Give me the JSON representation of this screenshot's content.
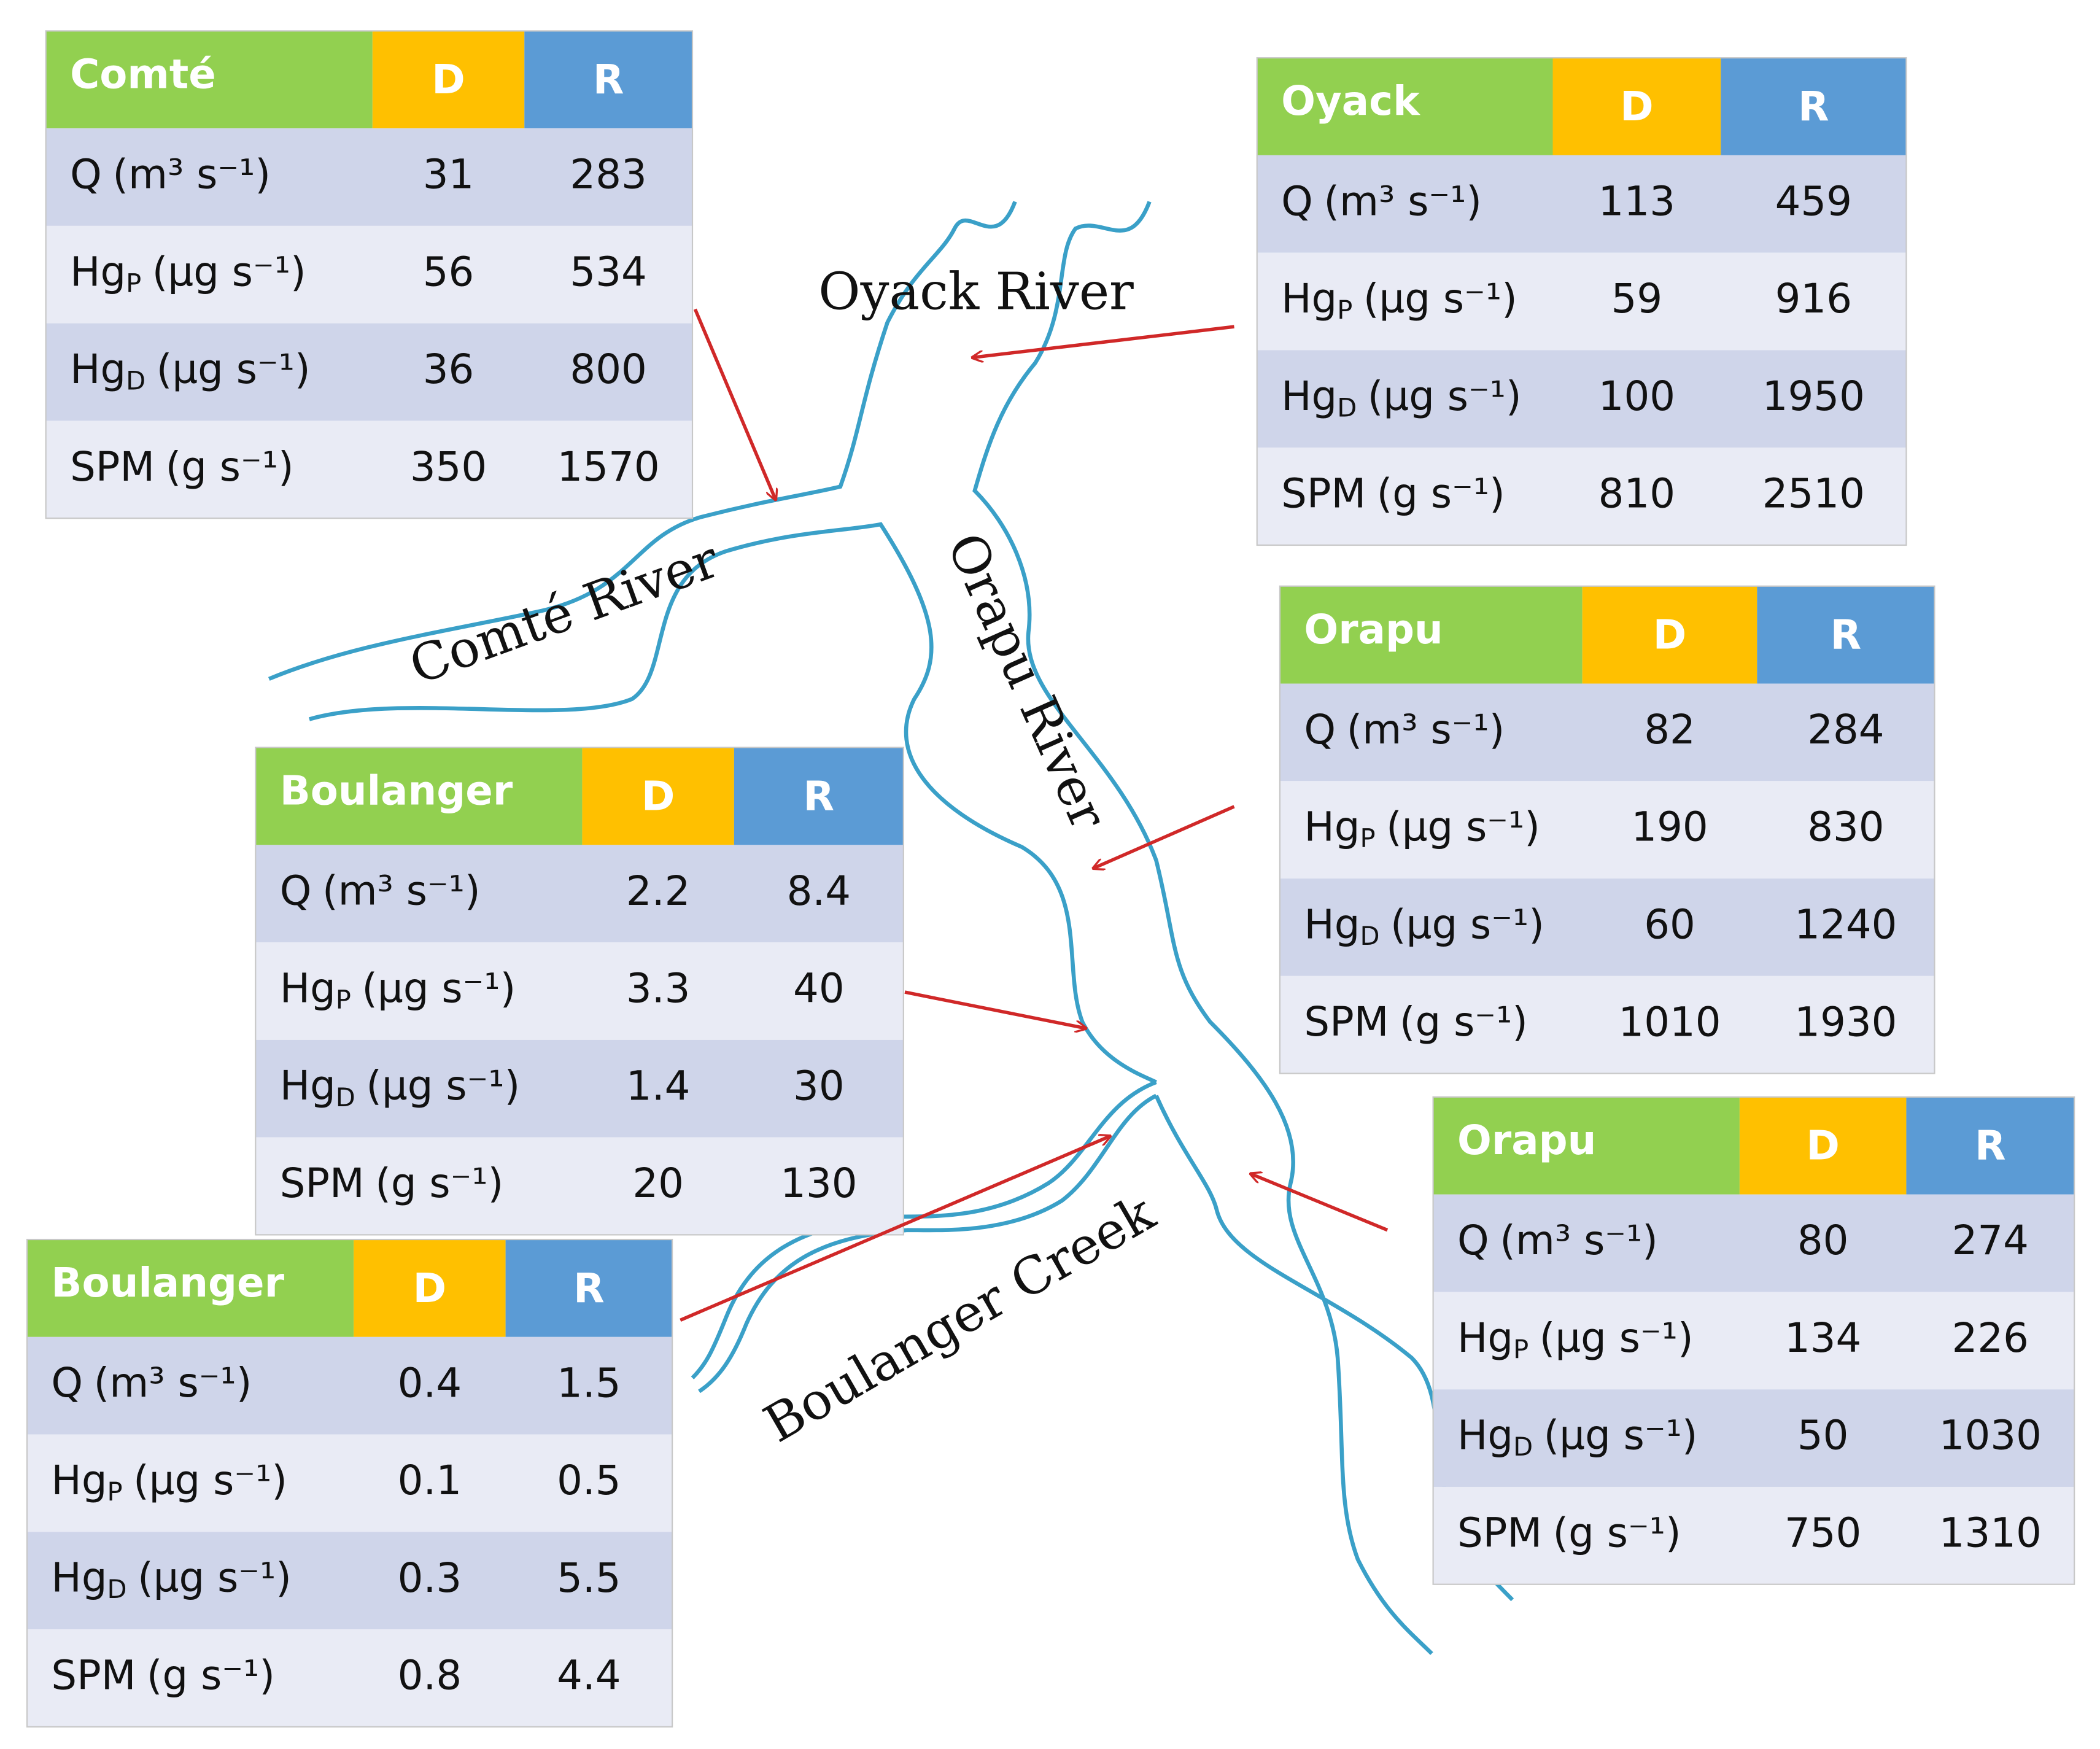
{
  "rivers": [
    {
      "label": "Oyack River"
    },
    {
      "label": "Comté River"
    },
    {
      "label": "Orapu River"
    },
    {
      "label": "Boulanger Creek"
    }
  ],
  "tables": [
    {
      "name": "Comté",
      "columns": [
        "D",
        "R"
      ],
      "rows": [
        {
          "label": "Q",
          "unit": "(m³ s⁻¹)",
          "values": [
            31,
            283
          ]
        },
        {
          "label": "Hg",
          "sub": "P",
          "unit": "(µg s⁻¹)",
          "values": [
            56,
            534
          ]
        },
        {
          "label": "Hg",
          "sub": "D",
          "unit": "(µg s⁻¹)",
          "values": [
            36,
            800
          ]
        },
        {
          "label": "SPM",
          "unit": "(g s⁻¹)",
          "values": [
            350,
            1570
          ]
        }
      ]
    },
    {
      "name": "Oyack",
      "columns": [
        "D",
        "R"
      ],
      "rows": [
        {
          "label": "Q",
          "unit": "(m³ s⁻¹)",
          "values": [
            113,
            459
          ]
        },
        {
          "label": "Hg",
          "sub": "P",
          "unit": "(µg s⁻¹)",
          "values": [
            59,
            916
          ]
        },
        {
          "label": "Hg",
          "sub": "D",
          "unit": "(µg s⁻¹)",
          "values": [
            100,
            1950
          ]
        },
        {
          "label": "SPM",
          "unit": "(g s⁻¹)",
          "values": [
            810,
            2510
          ]
        }
      ]
    },
    {
      "name": "Orapu",
      "columns": [
        "D",
        "R"
      ],
      "rows": [
        {
          "label": "Q",
          "unit": "(m³ s⁻¹)",
          "values": [
            82,
            284
          ]
        },
        {
          "label": "Hg",
          "sub": "P",
          "unit": "(µg s⁻¹)",
          "values": [
            190,
            830
          ]
        },
        {
          "label": "Hg",
          "sub": "D",
          "unit": "(µg s⁻¹)",
          "values": [
            60,
            1240
          ]
        },
        {
          "label": "SPM",
          "unit": "(g s⁻¹)",
          "values": [
            1010,
            1930
          ]
        }
      ]
    },
    {
      "name": "Boulanger",
      "columns": [
        "D",
        "R"
      ],
      "rows": [
        {
          "label": "Q",
          "unit": "(m³ s⁻¹)",
          "values": [
            2.2,
            8.4
          ]
        },
        {
          "label": "Hg",
          "sub": "P",
          "unit": "(µg s⁻¹)",
          "values": [
            3.3,
            40
          ]
        },
        {
          "label": "Hg",
          "sub": "D",
          "unit": "(µg s⁻¹)",
          "values": [
            1.4,
            30
          ]
        },
        {
          "label": "SPM",
          "unit": "(g s⁻¹)",
          "values": [
            20,
            130
          ]
        }
      ]
    },
    {
      "name": "Boulanger",
      "columns": [
        "D",
        "R"
      ],
      "rows": [
        {
          "label": "Q",
          "unit": "(m³ s⁻¹)",
          "values": [
            0.4,
            1.5
          ]
        },
        {
          "label": "Hg",
          "sub": "P",
          "unit": "(µg s⁻¹)",
          "values": [
            0.1,
            0.5
          ]
        },
        {
          "label": "Hg",
          "sub": "D",
          "unit": "(µg s⁻¹)",
          "values": [
            0.3,
            5.5
          ]
        },
        {
          "label": "SPM",
          "unit": "(g s⁻¹)",
          "values": [
            0.8,
            4.4
          ]
        }
      ]
    },
    {
      "name": "Orapu",
      "columns": [
        "D",
        "R"
      ],
      "rows": [
        {
          "label": "Q",
          "unit": "(m³ s⁻¹)",
          "values": [
            80,
            274
          ]
        },
        {
          "label": "Hg",
          "sub": "P",
          "unit": "(µg s⁻¹)",
          "values": [
            134,
            226
          ]
        },
        {
          "label": "Hg",
          "sub": "D",
          "unit": "(µg s⁻¹)",
          "values": [
            50,
            1030
          ]
        },
        {
          "label": "SPM",
          "unit": "(g s⁻¹)",
          "values": [
            750,
            1310
          ]
        }
      ]
    }
  ]
}
